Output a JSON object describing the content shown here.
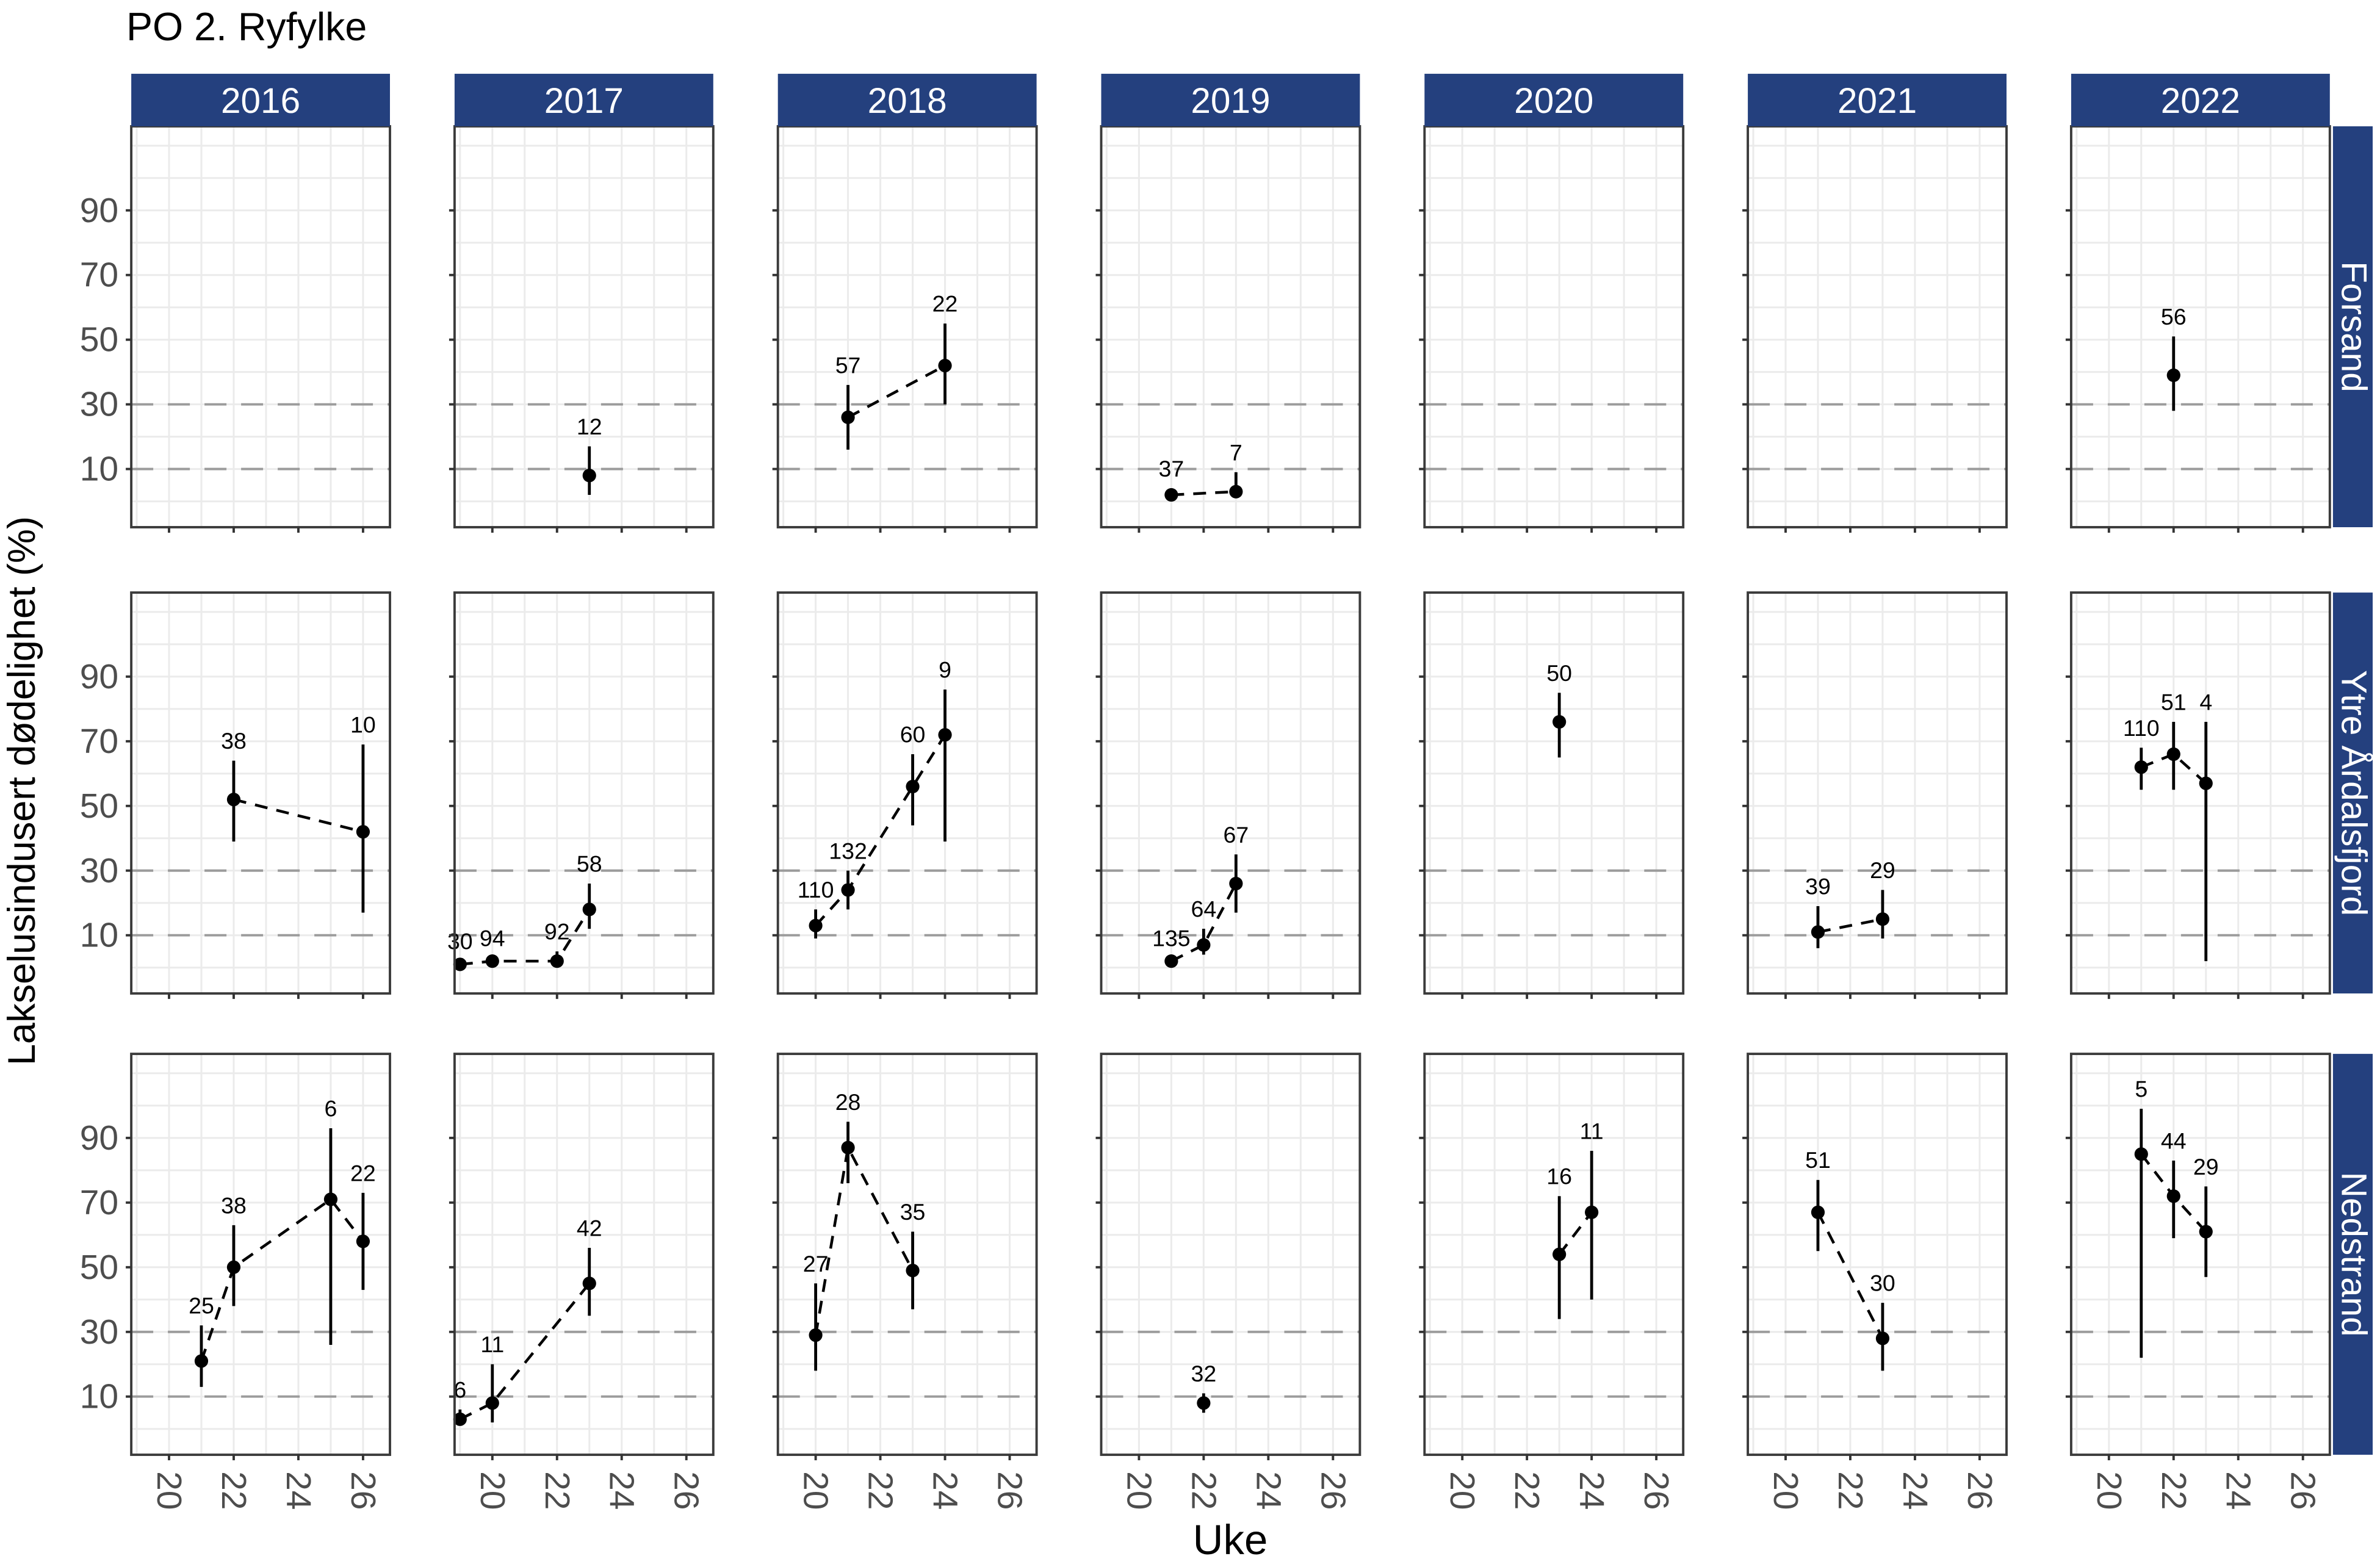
{
  "chart_data": {
    "type": "scatter",
    "title": "PO 2. Ryfylke",
    "xlabel": "Uke",
    "ylabel": "Lakselusindusert dødelighet (%)",
    "col_facets": [
      "2016",
      "2017",
      "2018",
      "2019",
      "2020",
      "2021",
      "2022"
    ],
    "row_facets": [
      "Forsand",
      "Ytre Årdalsfjord",
      "Nedstrand"
    ],
    "x_ticks": [
      20,
      22,
      24,
      26
    ],
    "y_ticks": [
      10,
      30,
      50,
      70,
      90
    ],
    "xlim": [
      18.83,
      26.83
    ],
    "ylim": [
      -8,
      116
    ],
    "dashed_hlines": [
      10,
      30
    ],
    "grid_v_weeks": [
      19,
      20,
      21,
      22,
      23,
      24,
      25,
      26
    ],
    "grid_h_step": 10,
    "legend": "none",
    "colors": {
      "strip_bg": "#24407E",
      "strip_text": "#FFFFFF",
      "axis_text": "#4D4D4D",
      "grid": "#EBEBEB",
      "dashed_line": "#9C9C9C",
      "panel_border": "#3B3B3B",
      "tick": "#333333",
      "point": "#000000",
      "label_text": "#000000",
      "panel_bg": "#FFFFFF"
    },
    "series": [
      {
        "row": "Forsand",
        "col": "2017",
        "points": [
          {
            "x": 23,
            "y": 8,
            "lo": 2,
            "hi": 17,
            "n": "12"
          }
        ]
      },
      {
        "row": "Forsand",
        "col": "2018",
        "points": [
          {
            "x": 21,
            "y": 26,
            "lo": 16,
            "hi": 36,
            "n": "57"
          },
          {
            "x": 24,
            "y": 42,
            "lo": 30,
            "hi": 55,
            "n": "22"
          }
        ]
      },
      {
        "row": "Forsand",
        "col": "2019",
        "points": [
          {
            "x": 21,
            "y": 2,
            "lo": 1,
            "hi": 4,
            "n": "37"
          },
          {
            "x": 23,
            "y": 3,
            "lo": 1,
            "hi": 9,
            "n": "7"
          }
        ]
      },
      {
        "row": "Forsand",
        "col": "2022",
        "points": [
          {
            "x": 22,
            "y": 39,
            "lo": 28,
            "hi": 51,
            "n": "56"
          }
        ]
      },
      {
        "row": "Ytre Årdalsfjord",
        "col": "2016",
        "points": [
          {
            "x": 22,
            "y": 52,
            "lo": 39,
            "hi": 64,
            "n": "38"
          },
          {
            "x": 26,
            "y": 42,
            "lo": 17,
            "hi": 69,
            "n": "10"
          }
        ]
      },
      {
        "row": "Ytre Årdalsfjord",
        "col": "2017",
        "points": [
          {
            "x": 19,
            "y": 1,
            "lo": 0,
            "hi": 2,
            "n": "30"
          },
          {
            "x": 20,
            "y": 2,
            "lo": 1,
            "hi": 3,
            "n": "94"
          },
          {
            "x": 22,
            "y": 2,
            "lo": 1,
            "hi": 5,
            "n": "92"
          },
          {
            "x": 23,
            "y": 18,
            "lo": 12,
            "hi": 26,
            "n": "58"
          }
        ]
      },
      {
        "row": "Ytre Årdalsfjord",
        "col": "2018",
        "points": [
          {
            "x": 20,
            "y": 13,
            "lo": 9,
            "hi": 18,
            "n": "110"
          },
          {
            "x": 21,
            "y": 24,
            "lo": 18,
            "hi": 30,
            "n": "132"
          },
          {
            "x": 23,
            "y": 56,
            "lo": 44,
            "hi": 66,
            "n": "60"
          },
          {
            "x": 24,
            "y": 72,
            "lo": 39,
            "hi": 86,
            "n": "9"
          }
        ]
      },
      {
        "row": "Ytre Årdalsfjord",
        "col": "2019",
        "points": [
          {
            "x": 21,
            "y": 2,
            "lo": 1,
            "hi": 3,
            "n": "135"
          },
          {
            "x": 22,
            "y": 7,
            "lo": 4,
            "hi": 12,
            "n": "64"
          },
          {
            "x": 23,
            "y": 26,
            "lo": 17,
            "hi": 35,
            "n": "67"
          }
        ]
      },
      {
        "row": "Ytre Årdalsfjord",
        "col": "2020",
        "points": [
          {
            "x": 23,
            "y": 76,
            "lo": 65,
            "hi": 85,
            "n": "50"
          }
        ]
      },
      {
        "row": "Ytre Årdalsfjord",
        "col": "2021",
        "points": [
          {
            "x": 21,
            "y": 11,
            "lo": 6,
            "hi": 19,
            "n": "39"
          },
          {
            "x": 23,
            "y": 15,
            "lo": 9,
            "hi": 24,
            "n": "29"
          }
        ]
      },
      {
        "row": "Ytre Årdalsfjord",
        "col": "2022",
        "points": [
          {
            "x": 21,
            "y": 62,
            "lo": 55,
            "hi": 68,
            "n": "110"
          },
          {
            "x": 22,
            "y": 66,
            "lo": 55,
            "hi": 76,
            "n": "51"
          },
          {
            "x": 23,
            "y": 57,
            "lo": 2,
            "hi": 76,
            "n": "4"
          }
        ]
      },
      {
        "row": "Nedstrand",
        "col": "2016",
        "points": [
          {
            "x": 21,
            "y": 21,
            "lo": 13,
            "hi": 32,
            "n": "25"
          },
          {
            "x": 22,
            "y": 50,
            "lo": 38,
            "hi": 63,
            "n": "38"
          },
          {
            "x": 25,
            "y": 71,
            "lo": 26,
            "hi": 93,
            "n": "6"
          },
          {
            "x": 26,
            "y": 58,
            "lo": 43,
            "hi": 73,
            "n": "22"
          }
        ]
      },
      {
        "row": "Nedstrand",
        "col": "2017",
        "points": [
          {
            "x": 19,
            "y": 3,
            "lo": 1,
            "hi": 6,
            "n": "6"
          },
          {
            "x": 20,
            "y": 8,
            "lo": 2,
            "hi": 20,
            "n": "11"
          },
          {
            "x": 23,
            "y": 45,
            "lo": 35,
            "hi": 56,
            "n": "42"
          }
        ]
      },
      {
        "row": "Nedstrand",
        "col": "2018",
        "points": [
          {
            "x": 20,
            "y": 29,
            "lo": 18,
            "hi": 45,
            "n": "27"
          },
          {
            "x": 21,
            "y": 87,
            "lo": 76,
            "hi": 95,
            "n": "28"
          },
          {
            "x": 23,
            "y": 49,
            "lo": 37,
            "hi": 61,
            "n": "35"
          }
        ]
      },
      {
        "row": "Nedstrand",
        "col": "2019",
        "points": [
          {
            "x": 22,
            "y": 8,
            "lo": 5,
            "hi": 11,
            "n": "32"
          }
        ]
      },
      {
        "row": "Nedstrand",
        "col": "2020",
        "points": [
          {
            "x": 23,
            "y": 54,
            "lo": 34,
            "hi": 72,
            "n": "16"
          },
          {
            "x": 24,
            "y": 67,
            "lo": 40,
            "hi": 86,
            "n": "11"
          }
        ]
      },
      {
        "row": "Nedstrand",
        "col": "2021",
        "points": [
          {
            "x": 21,
            "y": 67,
            "lo": 55,
            "hi": 77,
            "n": "51"
          },
          {
            "x": 23,
            "y": 28,
            "lo": 18,
            "hi": 39,
            "n": "30"
          }
        ]
      },
      {
        "row": "Nedstrand",
        "col": "2022",
        "points": [
          {
            "x": 21,
            "y": 85,
            "lo": 22,
            "hi": 99,
            "n": "5"
          },
          {
            "x": 22,
            "y": 72,
            "lo": 59,
            "hi": 83,
            "n": "44"
          },
          {
            "x": 23,
            "y": 61,
            "lo": 47,
            "hi": 75,
            "n": "29"
          }
        ]
      }
    ]
  }
}
